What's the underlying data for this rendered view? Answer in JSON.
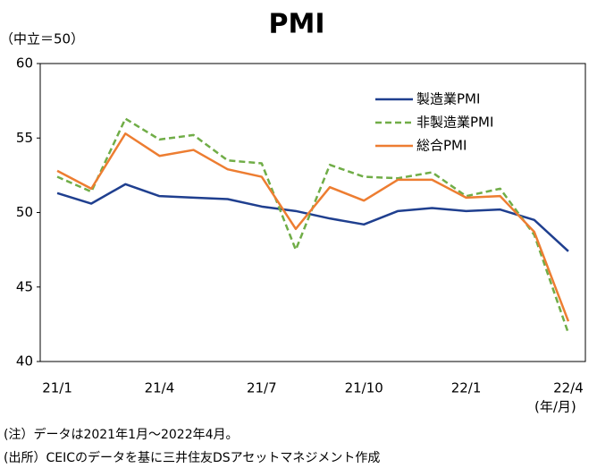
{
  "chart_data": {
    "type": "line",
    "title": "PMI",
    "y_unit_label": "（中立＝50）",
    "x_unit_label": "(年/月)",
    "categories": [
      "21/1",
      null,
      null,
      "21/4",
      null,
      null,
      "21/7",
      null,
      null,
      "21/10",
      null,
      null,
      "22/1",
      null,
      null,
      "22/4"
    ],
    "series": [
      {
        "name": "製造業PMI",
        "color": "#1f3f8f",
        "dash": false,
        "values": [
          51.3,
          50.6,
          51.9,
          51.1,
          51.0,
          50.9,
          50.4,
          50.1,
          49.6,
          49.2,
          50.1,
          50.3,
          50.1,
          50.2,
          49.5,
          47.4
        ]
      },
      {
        "name": "非製造業PMI",
        "color": "#70ad47",
        "dash": true,
        "values": [
          52.4,
          51.4,
          56.3,
          54.9,
          55.2,
          53.5,
          53.3,
          47.5,
          53.2,
          52.4,
          52.3,
          52.7,
          51.1,
          51.6,
          48.5,
          41.9
        ]
      },
      {
        "name": "総合PMI",
        "color": "#ed7d31",
        "dash": false,
        "values": [
          52.8,
          51.6,
          55.3,
          53.8,
          54.2,
          52.9,
          52.4,
          48.9,
          51.7,
          50.8,
          52.2,
          52.2,
          51.0,
          51.1,
          48.7,
          42.7
        ]
      }
    ],
    "ylim": [
      40,
      60
    ],
    "yticks": [
      40,
      45,
      50,
      55,
      60
    ],
    "legend": "upper-right",
    "notes": [
      "(注）データは2021年1月～2022年4月。",
      "(出所）CEICのデータを基に三井住友DSアセットマネジメント作成"
    ]
  }
}
